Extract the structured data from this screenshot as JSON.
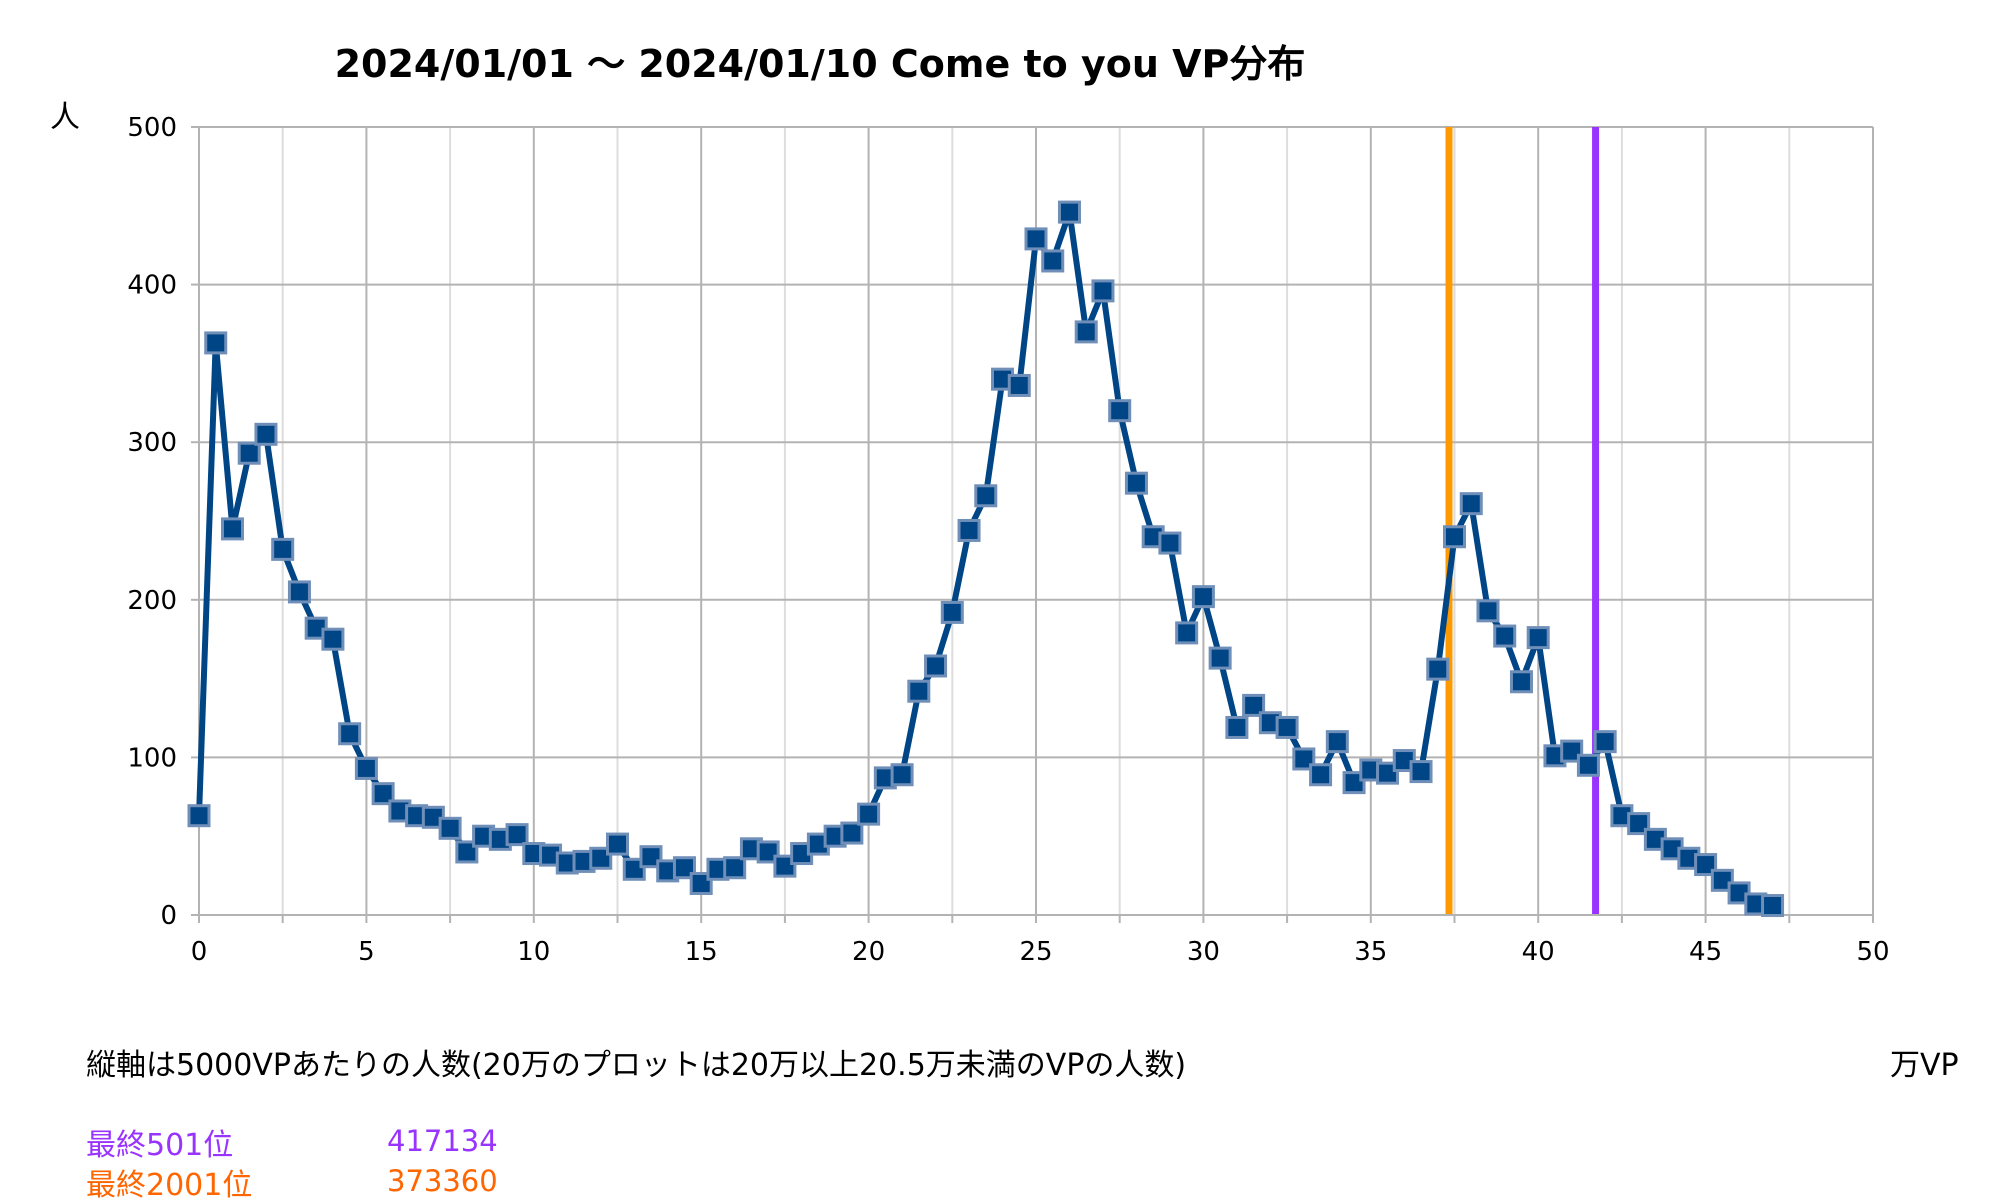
{
  "chart_data": {
    "type": "line",
    "title": "2024/01/01 ～ 2024/01/10 Come to you VP分布",
    "ylabel": "人",
    "xlabel": "万VP",
    "xlim": [
      0,
      50
    ],
    "ylim": [
      0,
      500
    ],
    "xticks": [
      0,
      5,
      10,
      15,
      20,
      25,
      30,
      35,
      40,
      45,
      50
    ],
    "yticks": [
      0,
      100,
      200,
      300,
      400,
      500
    ],
    "grid": true,
    "series_color": "#004586",
    "x": [
      0,
      0.5,
      1,
      1.5,
      2,
      2.5,
      3,
      3.5,
      4,
      4.5,
      5,
      5.5,
      6,
      6.5,
      7,
      7.5,
      8,
      8.5,
      9,
      9.5,
      10,
      10.5,
      11,
      11.5,
      12,
      12.5,
      13,
      13.5,
      14,
      14.5,
      15,
      15.5,
      16,
      16.5,
      17,
      17.5,
      18,
      18.5,
      19,
      19.5,
      20,
      20.5,
      21,
      21.5,
      22,
      22.5,
      23,
      23.5,
      24,
      24.5,
      25,
      25.5,
      26,
      26.5,
      27,
      27.5,
      28,
      28.5,
      29,
      29.5,
      30,
      30.5,
      31,
      31.5,
      32,
      32.5,
      33,
      33.5,
      34,
      34.5,
      35,
      35.5,
      36,
      36.5,
      37,
      37.5,
      38,
      38.5,
      39,
      39.5,
      40,
      40.5,
      41,
      41.5,
      42,
      42.5,
      43,
      43.5,
      44,
      44.5,
      45,
      45.5,
      46,
      46.5,
      47
    ],
    "values": [
      63,
      363,
      245,
      293,
      305,
      232,
      205,
      182,
      175,
      115,
      93,
      77,
      66,
      63,
      62,
      55,
      40,
      50,
      48,
      51,
      39,
      38,
      33,
      34,
      36,
      45,
      29,
      37,
      28,
      30,
      20,
      29,
      30,
      42,
      40,
      31,
      39,
      45,
      50,
      52,
      64,
      87,
      89,
      142,
      158,
      192,
      244,
      266,
      340,
      336,
      429,
      415,
      446,
      370,
      396,
      320,
      274,
      240,
      236,
      179,
      202,
      163,
      119,
      133,
      122,
      119,
      99,
      89,
      110,
      84,
      92,
      90,
      98,
      91,
      156,
      240,
      261,
      193,
      177,
      148,
      176,
      101,
      104,
      95,
      110,
      63,
      58,
      48,
      42,
      36,
      32,
      22,
      14,
      7,
      6
    ],
    "vlines": [
      {
        "x": 37.336,
        "color": "#ff9900"
      },
      {
        "x": 41.7134,
        "color": "#9933ff"
      }
    ]
  },
  "note": "縦軸は5000VPあたりの人数(20万のプロットは20万以上20.5万未満のVPの人数)",
  "legend": [
    {
      "label": "最終501位",
      "value": "417134",
      "color": "#9933ff"
    },
    {
      "label": "最終2001位",
      "value": "373360",
      "color": "#ff6600"
    }
  ]
}
